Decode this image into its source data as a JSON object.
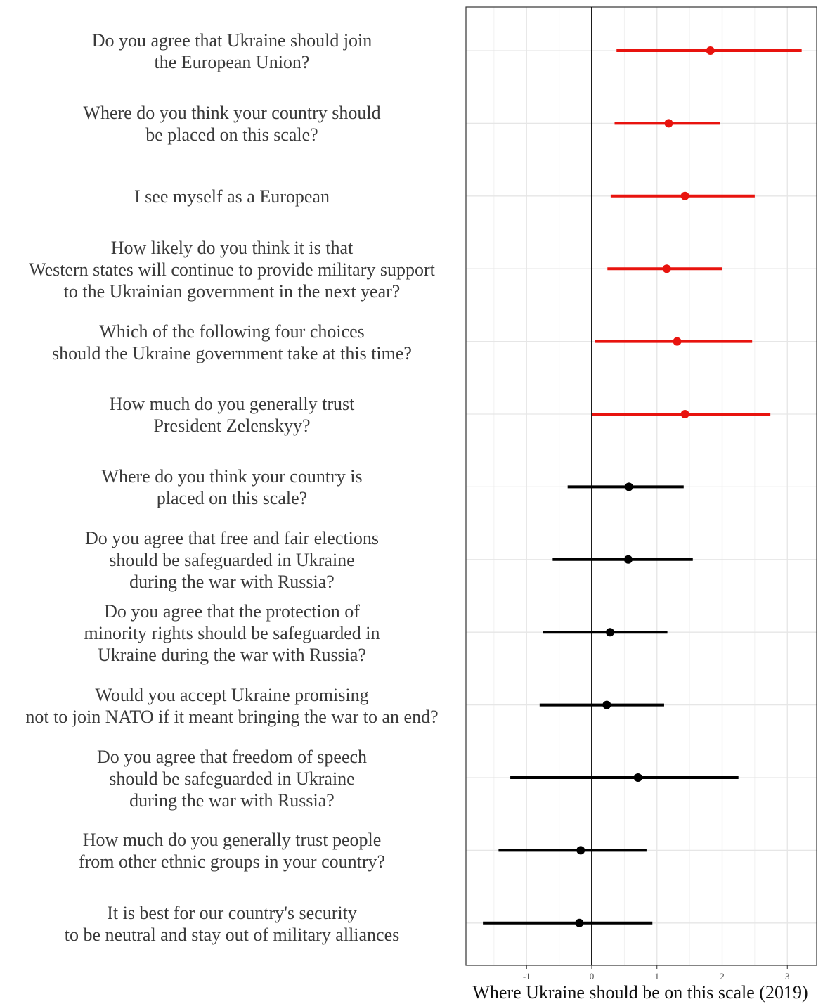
{
  "chart_data": {
    "type": "forest",
    "xlabel": "Where Ukraine should be on this scale (2019)",
    "xlim": [
      -1.93,
      3.45
    ],
    "xticks": [
      -1,
      0,
      1,
      2,
      3
    ],
    "xtick_labels": [
      "-1",
      "0",
      "1",
      "2",
      "3"
    ],
    "grid": true,
    "reference_line": 0,
    "colors": {
      "significant": "#e8130e",
      "not_significant": "#000000"
    },
    "items": [
      {
        "label": [
          "Do you agree that Ukraine should join",
          "the European Union?"
        ],
        "estimate": 1.82,
        "low": 0.38,
        "high": 3.22,
        "color": "significant"
      },
      {
        "label": [
          "Where do you think your country should",
          "be placed on this scale?"
        ],
        "estimate": 1.18,
        "low": 0.35,
        "high": 1.97,
        "color": "significant"
      },
      {
        "label": [
          "I see myself as a European"
        ],
        "estimate": 1.43,
        "low": 0.29,
        "high": 2.5,
        "color": "significant"
      },
      {
        "label": [
          "How likely do you think it is that",
          "Western states will continue to provide military support",
          "to the Ukrainian government in the next year?"
        ],
        "estimate": 1.15,
        "low": 0.24,
        "high": 2.0,
        "color": "significant"
      },
      {
        "label": [
          "Which of the following four choices",
          "should the Ukraine government take at this time?"
        ],
        "estimate": 1.31,
        "low": 0.05,
        "high": 2.46,
        "color": "significant"
      },
      {
        "label": [
          "How much do you generally trust",
          "President Zelenskyy?"
        ],
        "estimate": 1.43,
        "low": 0.01,
        "high": 2.74,
        "color": "significant"
      },
      {
        "label": [
          "Where do you think your country is",
          "placed on this scale?"
        ],
        "estimate": 0.57,
        "low": -0.37,
        "high": 1.41,
        "color": "not_significant"
      },
      {
        "label": [
          "Do you agree that free and fair elections",
          "should be safeguarded in Ukraine",
          "during the war with Russia?"
        ],
        "estimate": 0.56,
        "low": -0.6,
        "high": 1.55,
        "color": "not_significant"
      },
      {
        "label": [
          "Do you agree that the protection of",
          "minority rights should be safeguarded in",
          "Ukraine during the war with Russia?"
        ],
        "estimate": 0.28,
        "low": -0.75,
        "high": 1.16,
        "color": "not_significant"
      },
      {
        "label": [
          "Would you accept Ukraine promising",
          "not to join NATO if it meant bringing the war to an end?"
        ],
        "estimate": 0.23,
        "low": -0.8,
        "high": 1.11,
        "color": "not_significant"
      },
      {
        "label": [
          "Do you agree that freedom of speech",
          "should be safeguarded in Ukraine",
          "during the war with Russia?"
        ],
        "estimate": 0.71,
        "low": -1.25,
        "high": 2.25,
        "color": "not_significant"
      },
      {
        "label": [
          "How much do you generally trust people",
          "from other ethnic groups in your country?"
        ],
        "estimate": -0.17,
        "low": -1.43,
        "high": 0.84,
        "color": "not_significant"
      },
      {
        "label": [
          "It is best for our country's security",
          "to be neutral and stay out of military alliances"
        ],
        "estimate": -0.19,
        "low": -1.67,
        "high": 0.93,
        "color": "not_significant"
      }
    ]
  }
}
